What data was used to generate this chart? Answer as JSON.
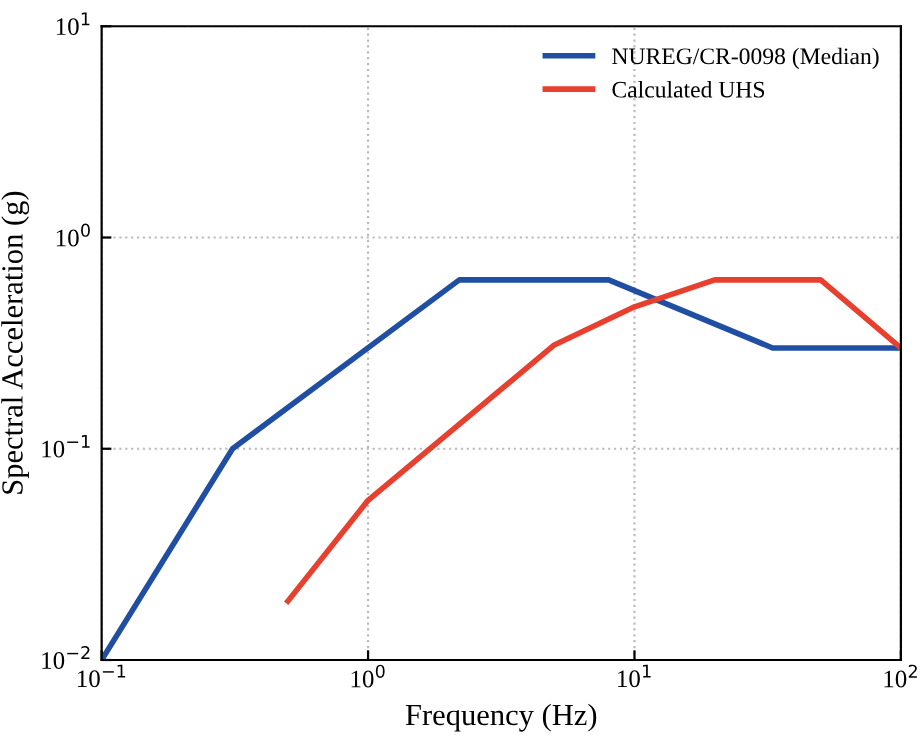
{
  "chart_data": {
    "type": "line",
    "xlabel": "Frequency (Hz)",
    "ylabel": "Spectral Acceleration (g)",
    "log": "xy",
    "grid": true,
    "legend": "top right",
    "line_style": "solid",
    "marker": "none",
    "xlim": [
      0.1,
      100
    ],
    "ylim": [
      0.01,
      10
    ],
    "xticks": [
      {
        "value": 0.1,
        "label": "10$^{−1}$"
      },
      {
        "value": 1,
        "label": "10$^{0}$"
      },
      {
        "value": 10,
        "label": "10$^{1}$"
      },
      {
        "value": 100,
        "label": "10$^{2}$"
      }
    ],
    "yticks": [
      {
        "value": 0.01,
        "label": "10$^{−2}$"
      },
      {
        "value": 0.1,
        "label": "10$^{−1}$"
      },
      {
        "value": 1,
        "label": "10$^{0}$"
      },
      {
        "value": 10,
        "label": "10$^{1}$"
      }
    ],
    "series": [
      {
        "name": "NUREG/CR-0098 (Median)",
        "color": "#1f4ea3",
        "x": [
          0.1,
          0.31,
          2.2,
          8.0,
          33,
          100
        ],
        "values": [
          0.01,
          0.1,
          0.63,
          0.63,
          0.3,
          0.3
        ]
      },
      {
        "name": "Calculated UHS",
        "color": "#e8402f",
        "x": [
          0.5,
          1,
          5,
          10,
          20,
          50,
          100
        ],
        "values": [
          0.019,
          0.057,
          0.31,
          0.47,
          0.63,
          0.63,
          0.3
        ]
      }
    ]
  }
}
